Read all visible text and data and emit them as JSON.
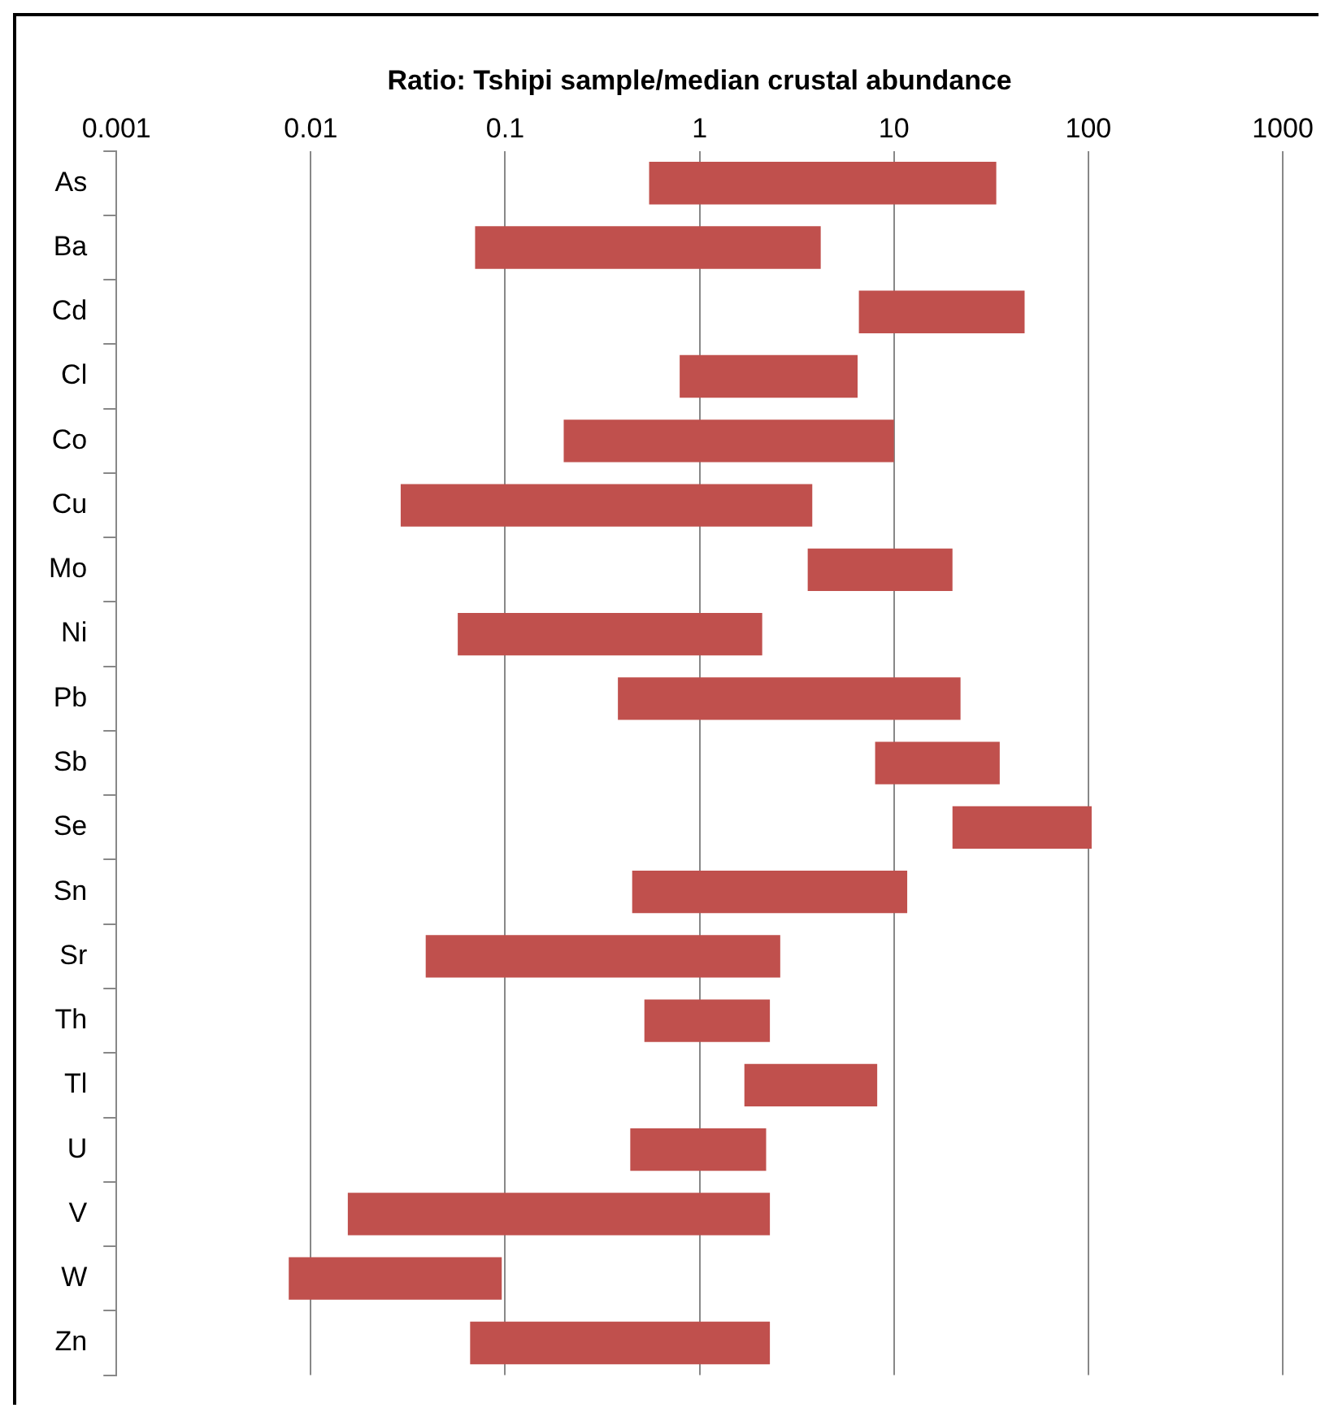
{
  "chart_data": {
    "type": "bar",
    "orientation": "horizontal",
    "xlabel": "Ratio: Tshipi sample/median crustal abundance",
    "categories": [
      "As",
      "Ba",
      "Cd",
      "Cl",
      "Co",
      "Cu",
      "Mo",
      "Ni",
      "Pb",
      "Sb",
      "Se",
      "Sn",
      "Sr",
      "Th",
      "Tl",
      "U",
      "V",
      "W",
      "Zn"
    ],
    "base": [
      0.55,
      0.07,
      6.6,
      0.79,
      0.2,
      0.029,
      3.6,
      0.057,
      0.38,
      8,
      20,
      0.45,
      0.039,
      0.52,
      1.7,
      0.44,
      0.0155,
      0.0077,
      0.066
    ],
    "values": [
      33.05,
      4.13,
      40.4,
      5.71,
      9.8,
      3.771,
      16.4,
      2.043,
      21.62,
      27,
      84,
      11.25,
      2.561,
      1.78,
      6.5,
      1.76,
      2.2845,
      0.0883,
      2.234
    ],
    "color": "#c0504d",
    "log": "x",
    "xlim": [
      0.001,
      1000
    ],
    "xticks": [
      0.001,
      0.01,
      0.1,
      1,
      10,
      100,
      1000
    ],
    "grid": "x"
  }
}
